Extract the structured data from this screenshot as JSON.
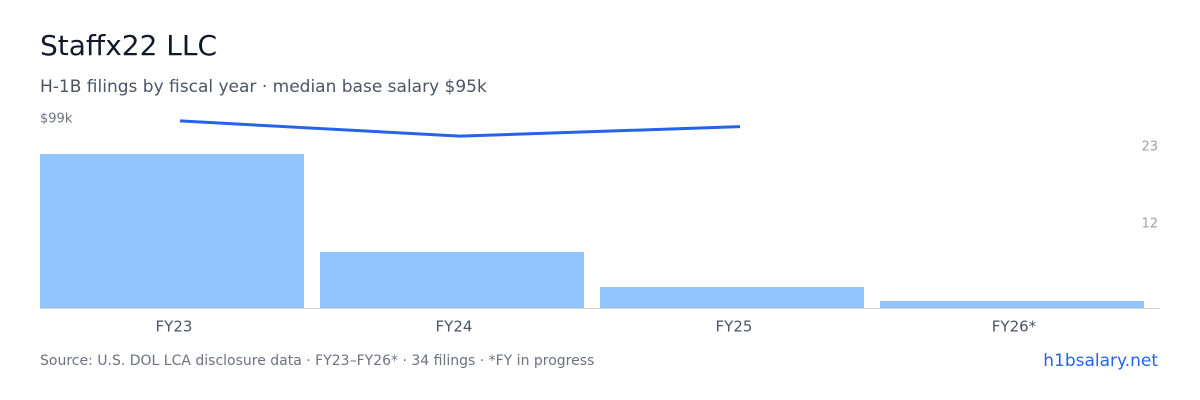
{
  "chart_data": {
    "type": "bar",
    "title": "Staffx22 LLC",
    "subtitle": "H-1B filings by fiscal year · median base salary $95k",
    "categories": [
      "FY23",
      "FY24",
      "FY25",
      "FY26*"
    ],
    "series": [
      {
        "type": "bar",
        "color": "#93c5fd",
        "values": [
          22,
          8,
          3,
          1
        ],
        "axis": "y2"
      },
      {
        "type": "line",
        "color": "#2563eb",
        "values": [
          98,
          90,
          95,
          null
        ]
      }
    ],
    "ylim": [
      0,
      99
    ],
    "yticks": [
      {
        "value": 99,
        "label": "$99k"
      }
    ],
    "y2lim": [
      0,
      27
    ],
    "y2ticks": [
      12,
      23
    ],
    "source": "Source: U.S. DOL LCA disclosure data · FY23–FY26* · 34 filings · *FY in progress",
    "link": "h1bsalary.net"
  }
}
